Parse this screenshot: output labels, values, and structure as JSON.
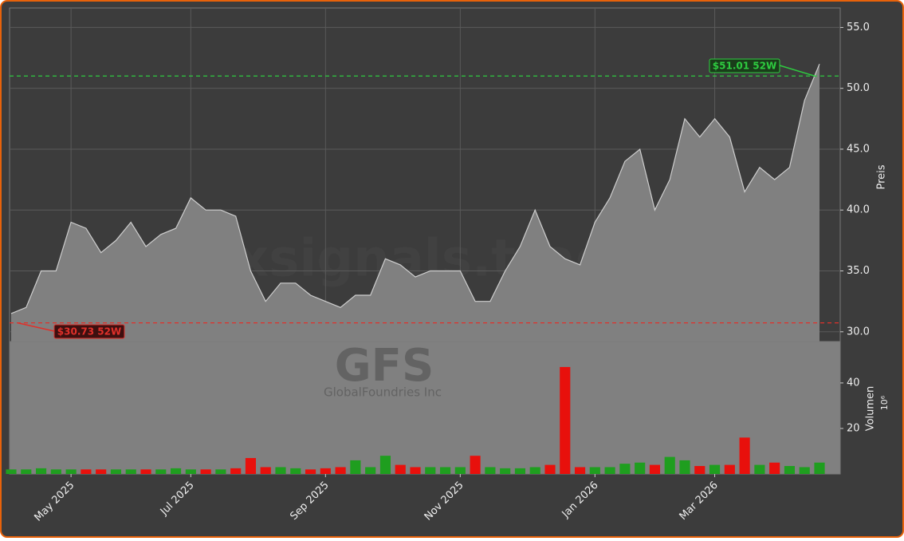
{
  "chart_data": {
    "type": "area",
    "watermarks": [
      "forexsignals.trade",
      "GFS",
      "GlobalFoundries Inc"
    ],
    "ylabel": "Preis",
    "y2label": "Volumen",
    "y2unit": "10⁶",
    "categories": [
      null,
      null,
      null,
      null,
      "May 2025",
      null,
      null,
      null,
      null,
      null,
      null,
      null,
      "Jul 2025",
      null,
      null,
      null,
      null,
      null,
      null,
      null,
      null,
      "Sep 2025",
      null,
      null,
      null,
      null,
      null,
      null,
      null,
      null,
      "Nov 2025",
      null,
      null,
      null,
      null,
      null,
      null,
      null,
      null,
      "Jan 2026",
      null,
      null,
      null,
      null,
      null,
      null,
      null,
      "Mar 2026",
      null,
      null,
      null,
      null,
      null,
      null,
      null
    ],
    "values": [
      31.5,
      32,
      35,
      35,
      39,
      38.5,
      36.5,
      37.5,
      39,
      37,
      38,
      38.5,
      41,
      40,
      40,
      39.5,
      35,
      32.5,
      34,
      34,
      33,
      32.5,
      32,
      33,
      33,
      36,
      35.5,
      34.5,
      35,
      35,
      35,
      32.5,
      32.5,
      35,
      37,
      40,
      37,
      36,
      35.5,
      39,
      41,
      44,
      45,
      40,
      42.5,
      47.5,
      46,
      47.5,
      46,
      41.5,
      43.5,
      42.5,
      43.5,
      49,
      52
    ],
    "volume": [
      2,
      2,
      2.5,
      2,
      2,
      2,
      2,
      2,
      2,
      2,
      2,
      2.5,
      2,
      2,
      2,
      2.5,
      7,
      3,
      3,
      2.5,
      2,
      2.5,
      3,
      6,
      3,
      8,
      4,
      3,
      3,
      3,
      3,
      8,
      3,
      2.5,
      2.5,
      3,
      4,
      47,
      3,
      3,
      3,
      4.5,
      5,
      4,
      7.5,
      6,
      3.5,
      4,
      4,
      16,
      4,
      5,
      3.5,
      3,
      5
    ],
    "color": "#808080",
    "line_color": "#cfcfcf",
    "up_color": "#1f9e1f",
    "down_color": "#e8100c",
    "ylim": [
      29.2,
      56.6
    ],
    "yticks": [
      {
        "value": 30,
        "label": "30.0"
      },
      {
        "value": 35,
        "label": "35.0"
      },
      {
        "value": 40,
        "label": "40.0"
      },
      {
        "value": 45,
        "label": "45.0"
      },
      {
        "value": 50,
        "label": "50.0"
      },
      {
        "value": 55,
        "label": "55.0"
      }
    ],
    "y2lim": [
      0,
      58.2
    ],
    "y2ticks": [
      20,
      40
    ],
    "grid": true,
    "annotations": [
      {
        "text": "$51.01 52W",
        "value": 51.01,
        "color": "#2ecc40"
      },
      {
        "text": "$30.73 52W",
        "value": 30.73,
        "color": "#e0302a"
      }
    ]
  }
}
